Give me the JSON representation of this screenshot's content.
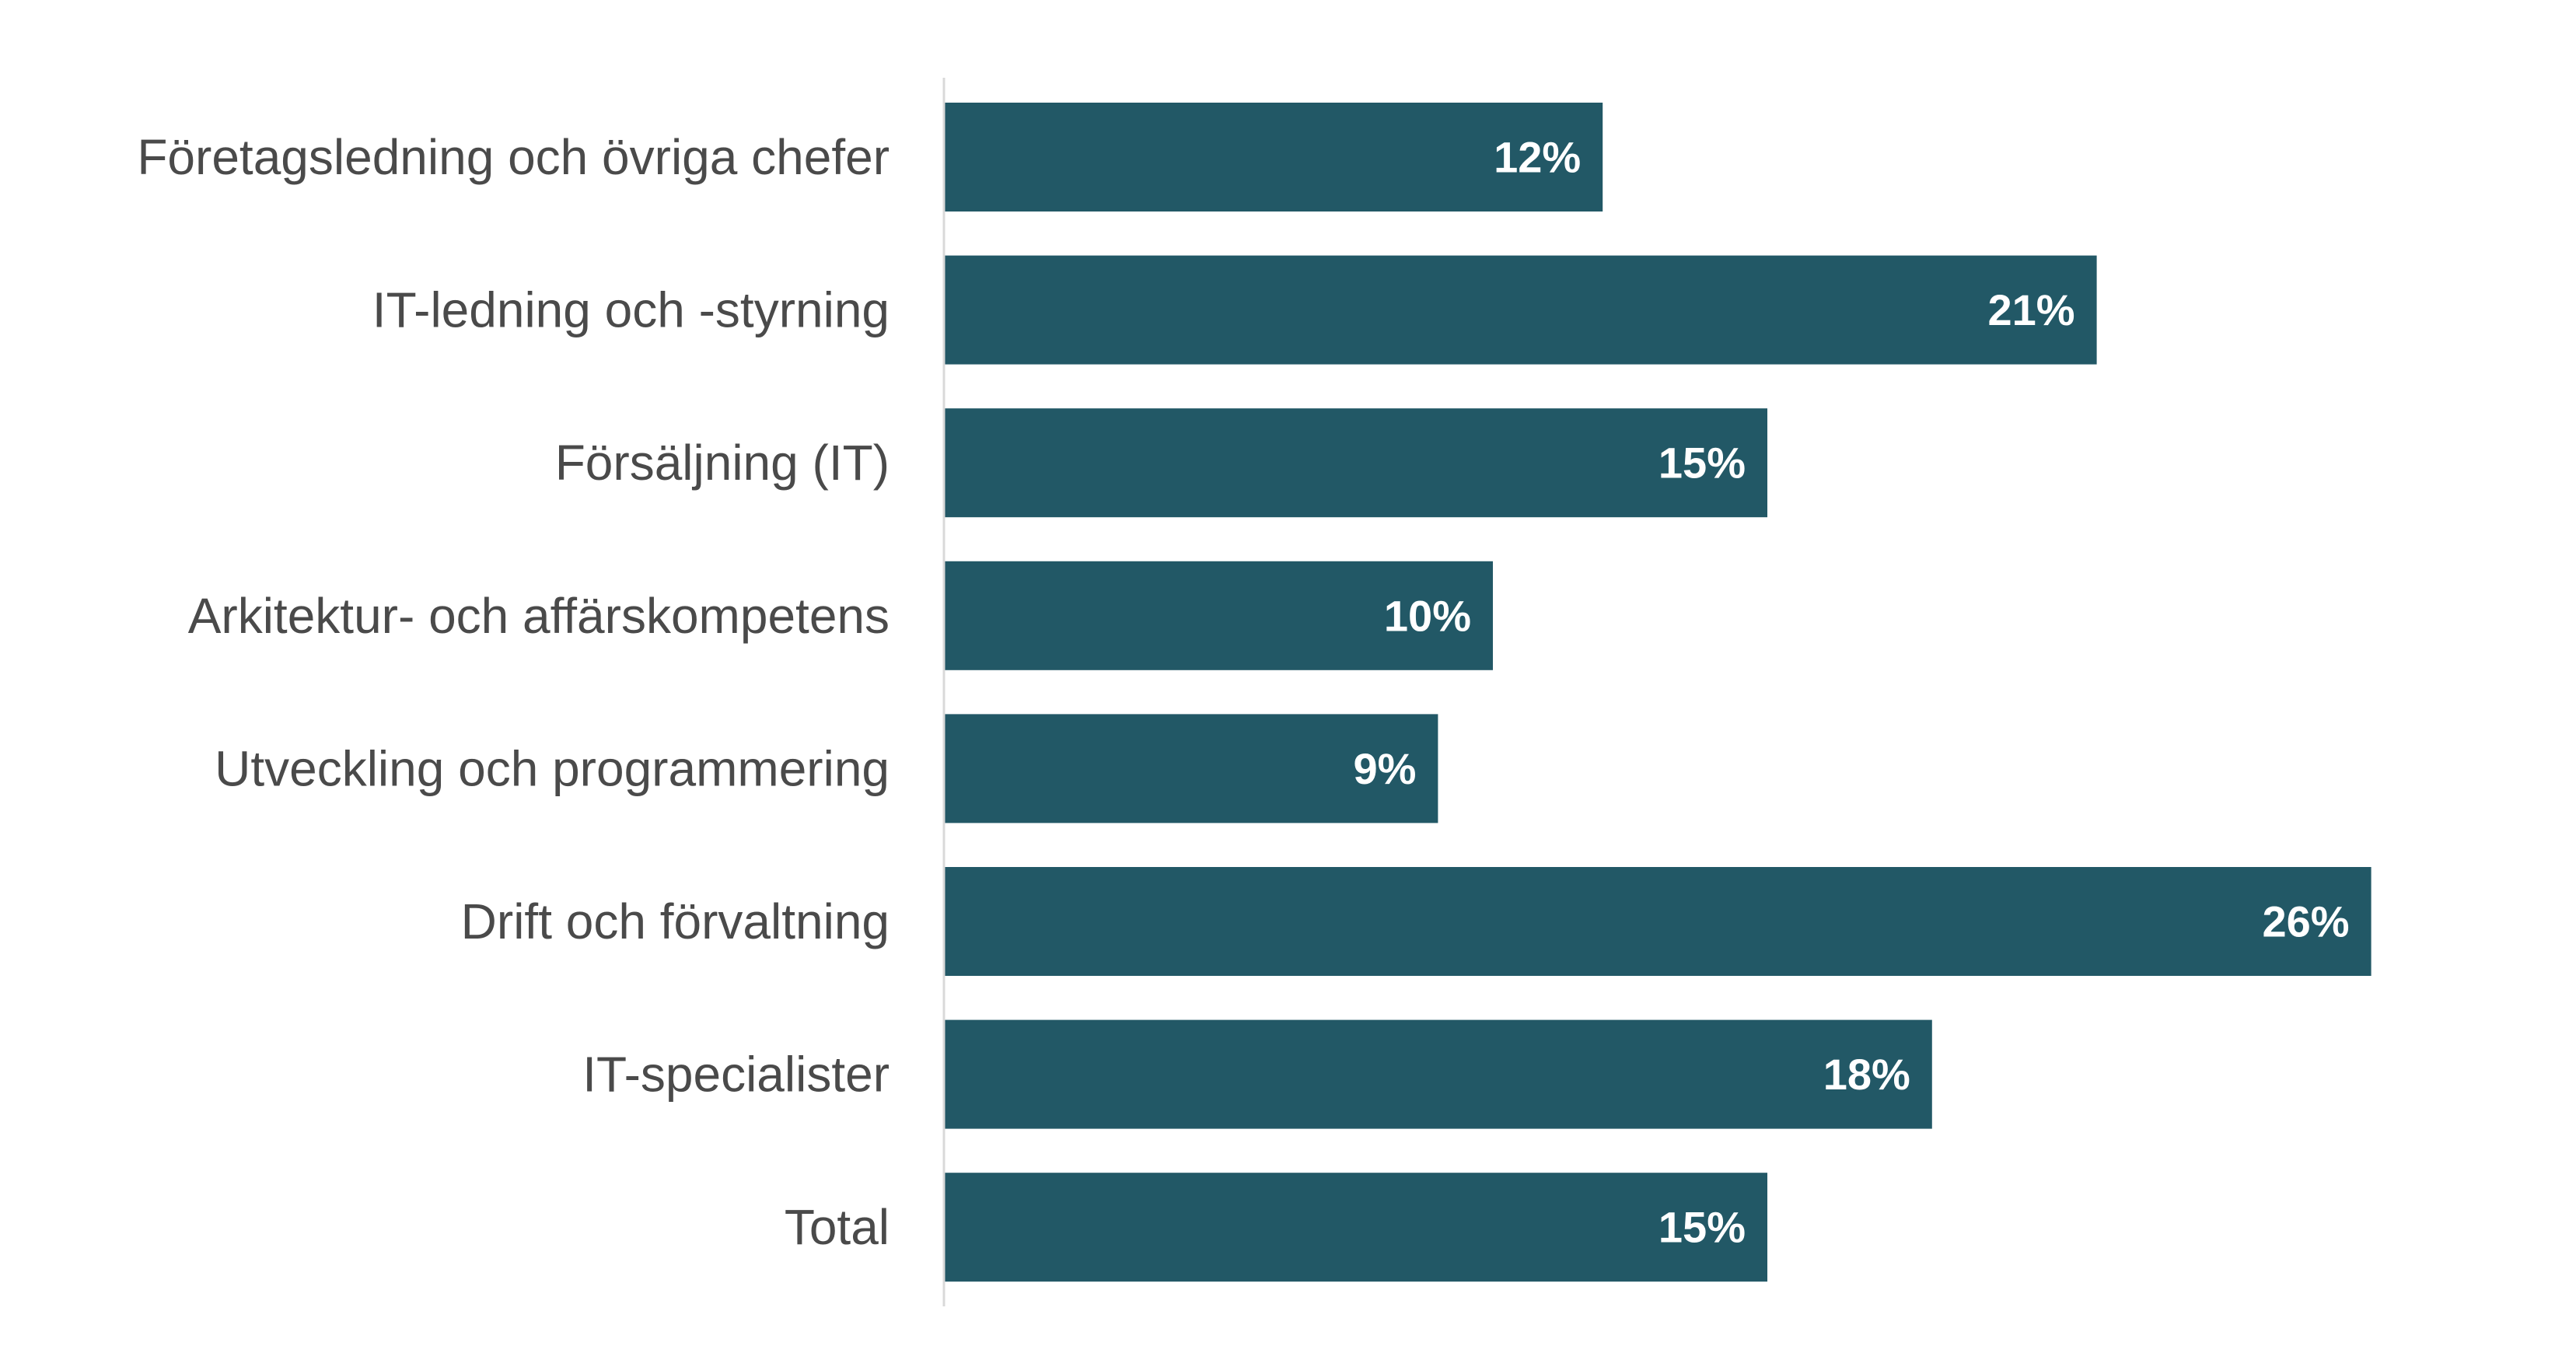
{
  "chart_data": {
    "type": "bar",
    "orientation": "horizontal",
    "categories": [
      "Företagsledning och övriga chefer",
      "IT-ledning och -styrning",
      "Försäljning (IT)",
      "Arkitektur- och affärskompetens",
      "Utveckling och programmering",
      "Drift och förvaltning",
      "IT-specialister",
      "Total"
    ],
    "values": [
      12,
      21,
      15,
      10,
      9,
      26,
      18,
      15
    ],
    "value_labels": [
      "12%",
      "21%",
      "15%",
      "10%",
      "9%",
      "26%",
      "18%",
      "15%"
    ],
    "title": "",
    "xlabel": "",
    "ylabel": "",
    "xlim": [
      0,
      27
    ],
    "grid": false,
    "legend": "none",
    "bar_color": "#225866",
    "axis_color": "#d9d9d9"
  }
}
